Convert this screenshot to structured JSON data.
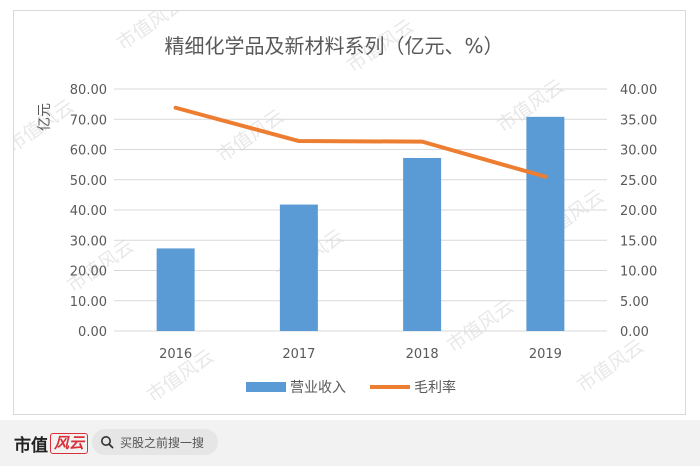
{
  "chart_data": {
    "type": "bar+line",
    "title": "精细化学品及新材料系列（亿元、%）",
    "y_left_label": "亿元",
    "categories": [
      "2016",
      "2017",
      "2018",
      "2019"
    ],
    "y_left_ticks": [
      "0.00",
      "10.00",
      "20.00",
      "30.00",
      "40.00",
      "50.00",
      "60.00",
      "70.00",
      "80.00"
    ],
    "y_right_ticks": [
      "0.00",
      "5.00",
      "10.00",
      "15.00",
      "20.00",
      "25.00",
      "30.00",
      "35.00",
      "40.00"
    ],
    "ylim_left": [
      0,
      80
    ],
    "ylim_right": [
      0,
      40
    ],
    "series": [
      {
        "name": "营业收入",
        "type": "bar",
        "axis": "left",
        "color": "#5b9bd5",
        "values": [
          27.3,
          41.8,
          57.2,
          70.8
        ]
      },
      {
        "name": "毛利率",
        "type": "line",
        "axis": "right",
        "color": "#ed7d31",
        "values": [
          36.9,
          31.4,
          31.3,
          25.5
        ]
      }
    ],
    "legend_position": "bottom",
    "grid": true
  },
  "watermark": "市值风云",
  "footer": {
    "brand_main": "市值",
    "brand_mark": "风云",
    "search_placeholder": "买股之前搜一搜"
  }
}
